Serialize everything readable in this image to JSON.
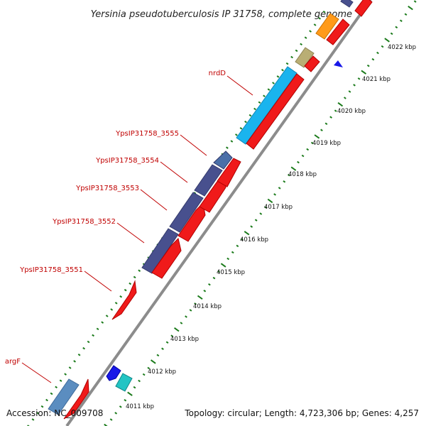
{
  "title": "Yersinia pseudotuberculosis IP 31758, complete genome",
  "footer": {
    "accession": "Accession: NC_009708",
    "topology": "Topology: circular; Length: 4,723,306 bp; Genes: 4,257"
  },
  "colors": {
    "backbone": "#8c8c8c",
    "tick": "#1a7a1a",
    "cds_red": "#f01a1a",
    "label_red": "#c00000",
    "navy": "#48508e",
    "steel_blue": "#5b8dc0",
    "sky_blue": "#1ab4ee",
    "khaki": "#b9ae74",
    "orange": "#ff9a1a",
    "blue": "#1818e8",
    "cyan": "#22c4c4"
  },
  "kbp_marks": [
    {
      "label": "4011 kbp"
    },
    {
      "label": "4012 kbp"
    },
    {
      "label": "4013 kbp"
    },
    {
      "label": "4014 kbp"
    },
    {
      "label": "4015 kbp"
    },
    {
      "label": "4016 kbp"
    },
    {
      "label": "4017 kbp"
    },
    {
      "label": "4018 kbp"
    },
    {
      "label": "4019 kbp"
    },
    {
      "label": "4020 kbp"
    },
    {
      "label": "4021 kbp"
    },
    {
      "label": "4022 kbp"
    }
  ],
  "gene_labels": [
    {
      "text": "nrdD"
    },
    {
      "text": "YpsIP31758_3555"
    },
    {
      "text": "YpsIP31758_3554"
    },
    {
      "text": "YpsIP31758_3553"
    },
    {
      "text": "YpsIP31758_3552"
    },
    {
      "text": "YpsIP31758_3551"
    },
    {
      "text": "argF"
    }
  ]
}
